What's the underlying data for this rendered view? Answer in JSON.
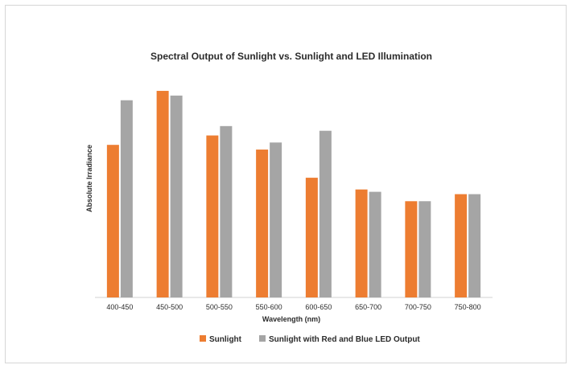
{
  "chart_data": {
    "type": "bar",
    "title": "Spectral Output of Sunlight vs. Sunlight and LED Illumination",
    "xlabel": "Wavelength (nm)",
    "ylabel": "Absolute Irradiance",
    "categories": [
      "400-450",
      "450-500",
      "500-550",
      "550-600",
      "600-650",
      "650-700",
      "700-750",
      "750-800"
    ],
    "series": [
      {
        "name": "Sunlight",
        "color": "#ED7D31",
        "values": [
          0.65,
          0.88,
          0.69,
          0.63,
          0.51,
          0.46,
          0.41,
          0.44
        ]
      },
      {
        "name": "Sunlight with Red and Blue LED Output",
        "color": "#A5A5A5",
        "values": [
          0.84,
          0.86,
          0.73,
          0.66,
          0.71,
          0.45,
          0.41,
          0.44
        ]
      }
    ],
    "ylim": [
      0,
      1
    ],
    "y_tick_labels": false,
    "grid": false,
    "legend_position": "bottom"
  }
}
